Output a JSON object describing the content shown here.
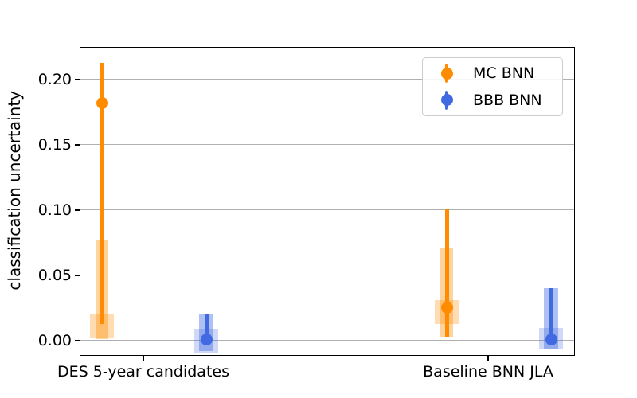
{
  "chart_data": {
    "type": "scatter",
    "title": "",
    "xlabel": "",
    "ylabel": "classification uncertainty",
    "categories": [
      "DES 5-year candidates",
      "Baseline BNN JLA"
    ],
    "ylim": [
      -0.0116,
      0.2249
    ],
    "yticks": [
      0.0,
      0.05,
      0.1,
      0.15,
      0.2
    ],
    "ytick_labels": [
      "0.00",
      "0.05",
      "0.10",
      "0.15",
      "0.20"
    ],
    "grid": "horizontal",
    "grid_color": "#b0b0b0",
    "spine_color": "#000000",
    "legend": {
      "position": "upper right",
      "items": [
        "MC BNN",
        "BBB BNN"
      ]
    },
    "series": [
      {
        "name": "MC BNN",
        "color": "#ff8c00",
        "box_alpha_inner": 0.38,
        "box_alpha_outer": 0.3,
        "points": [
          {
            "category": "DES 5-year candidates",
            "median": 0.182,
            "whisker_low": 0.013,
            "whisker_high": 0.213,
            "inner_box_low": 0.001,
            "inner_box_high": 0.077,
            "outer_box_low": 0.002,
            "outer_box_high": 0.02
          },
          {
            "category": "Baseline BNN JLA",
            "median": 0.025,
            "whisker_low": 0.003,
            "whisker_high": 0.101,
            "inner_box_low": 0.003,
            "inner_box_high": 0.071,
            "outer_box_low": 0.013,
            "outer_box_high": 0.031
          }
        ]
      },
      {
        "name": "BBB BNN",
        "color": "#4169e1",
        "box_alpha_inner": 0.42,
        "box_alpha_outer": 0.25,
        "points": [
          {
            "category": "DES 5-year candidates",
            "median": 0.001,
            "whisker_low": 0.001,
            "whisker_high": 0.021,
            "inner_box_low": -0.008,
            "inner_box_high": 0.021,
            "outer_box_low": -0.009,
            "outer_box_high": 0.009
          },
          {
            "category": "Baseline BNN JLA",
            "median": 0.001,
            "whisker_low": 0.001,
            "whisker_high": 0.04,
            "inner_box_low": -0.007,
            "inner_box_high": 0.04,
            "outer_box_low": -0.007,
            "outer_box_high": 0.01
          }
        ]
      }
    ]
  }
}
